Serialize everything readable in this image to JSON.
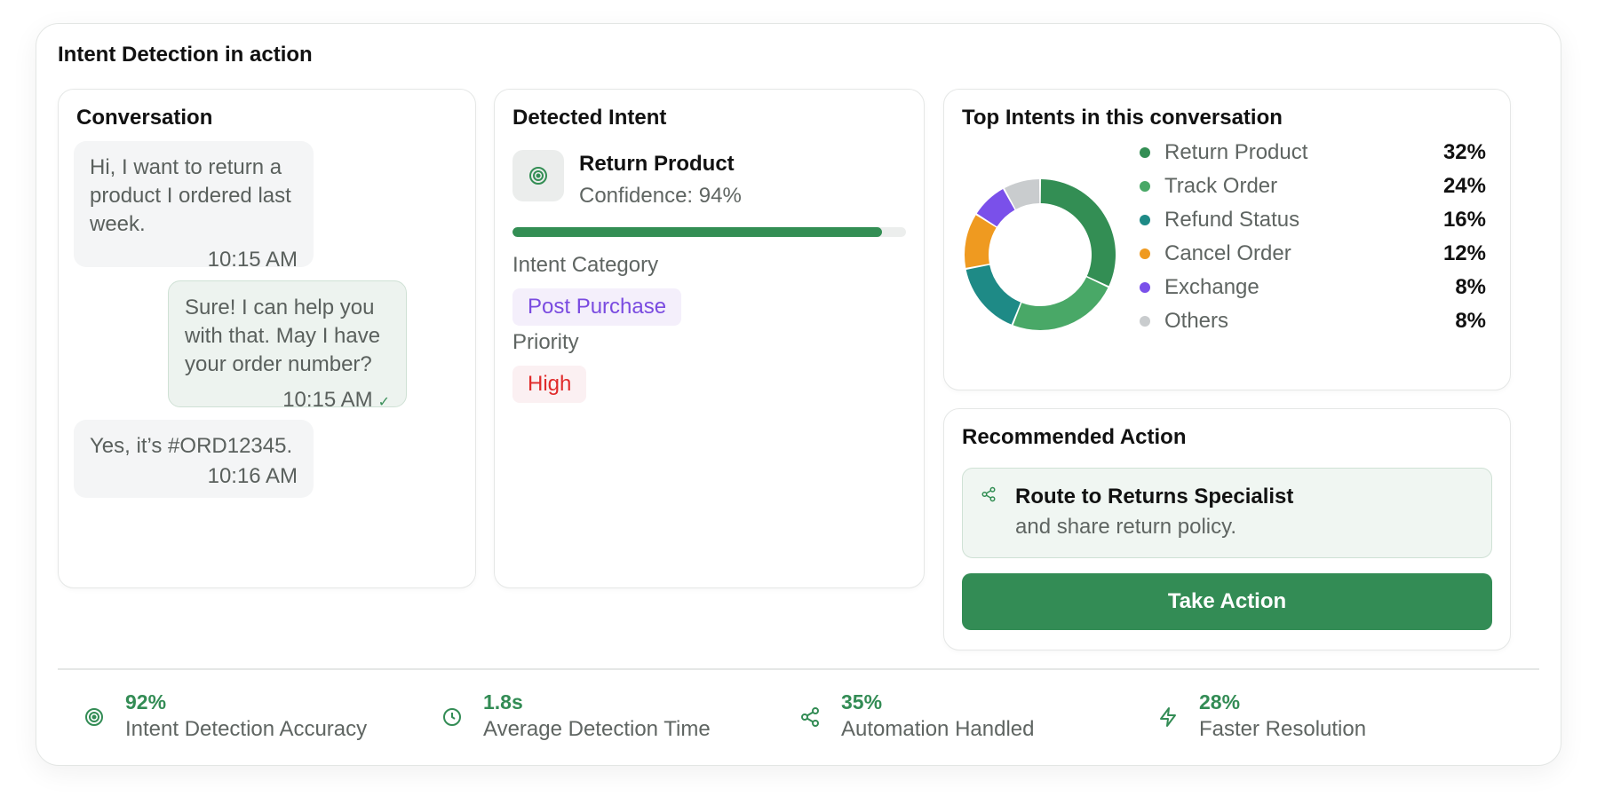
{
  "main_title": "Intent Detection in action",
  "conversation": {
    "title": "Conversation",
    "messages": [
      {
        "sender": "user",
        "text": "Hi, I want to return a product I ordered last week.",
        "time": "10:15 AM"
      },
      {
        "sender": "agent",
        "text": "Sure! I can help you with that. May I have your order number?",
        "time": "10:15 AM",
        "status": "✓"
      },
      {
        "sender": "user",
        "text": "Yes, it’s #ORD12345.",
        "time": "10:16 AM"
      }
    ]
  },
  "detected_intent": {
    "title": "Detected Intent",
    "icon": "target-icon",
    "intent_name": "Return Product",
    "confidence_text": "Confidence: 94%",
    "confidence_value": 0.94,
    "category_label": "Intent Category",
    "category_value": "Post Purchase",
    "priority_label": "Priority",
    "priority_value": "High",
    "colors": {
      "progress": "#338e54",
      "category": "#7a4be0",
      "priority": "#e02a2a"
    }
  },
  "top_intents": {
    "title": "Top Intents in this conversation",
    "chart_type": "donut",
    "items": [
      {
        "label": "Return Product",
        "pct_text": "32%",
        "value": 32,
        "color": "#338e54"
      },
      {
        "label": "Track Order",
        "pct_text": "24%",
        "value": 24,
        "color": "#49a867"
      },
      {
        "label": "Refund Status",
        "pct_text": "16%",
        "value": 16,
        "color": "#1e8a86"
      },
      {
        "label": "Cancel Order",
        "pct_text": "12%",
        "value": 12,
        "color": "#ef9a20"
      },
      {
        "label": "Exchange",
        "pct_text": "8%",
        "value": 8,
        "color": "#7a50ea"
      },
      {
        "label": "Others",
        "pct_text": "8%",
        "value": 8,
        "color": "#c9ccce"
      }
    ]
  },
  "recommended_action": {
    "title": "Recommended Action",
    "icon": "share-route-icon",
    "route_title": "Route to Returns Specialist",
    "route_sub": "and share return policy.",
    "button_label": "Take Action"
  },
  "stats": [
    {
      "icon": "target-icon",
      "value": "92%",
      "label": "Intent Detection Accuracy"
    },
    {
      "icon": "clock-icon",
      "value": "1.8s",
      "label": "Average Detection Time"
    },
    {
      "icon": "share-icon",
      "value": "35%",
      "label": "Automation Handled"
    },
    {
      "icon": "lightning-icon",
      "value": "28%",
      "label": "Faster Resolution"
    }
  ]
}
